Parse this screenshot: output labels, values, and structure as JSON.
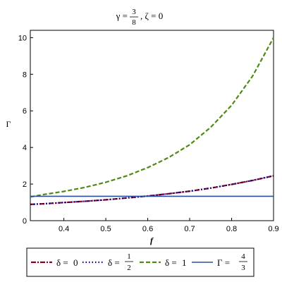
{
  "chart_data": {
    "type": "line",
    "title": {
      "lhs": "γ =",
      "num": "3",
      "den": "8",
      "rest": ", ζ = 0"
    },
    "xlabel": "f",
    "ylabel": "Γ",
    "xlim": [
      0.32,
      0.9
    ],
    "ylim": [
      0,
      10.4
    ],
    "xticks": [
      0.4,
      0.5,
      0.6,
      0.7,
      0.8,
      0.9
    ],
    "xtick_labels": [
      "0.4",
      "0.5",
      "0.6",
      "0.7",
      "0.8",
      "0.9"
    ],
    "yticks": [
      0,
      2,
      4,
      6,
      8,
      10
    ],
    "ytick_labels": [
      "0",
      "2",
      "4",
      "6",
      "8",
      "10"
    ],
    "grid": false,
    "legend_position": "bottom",
    "series": [
      {
        "legend_lhs": "δ = ",
        "legend_value": "0",
        "color": "#8b0021",
        "dash": "dashdot",
        "x": [
          0.32,
          0.35,
          0.4,
          0.45,
          0.5,
          0.55,
          0.6,
          0.65,
          0.7,
          0.75,
          0.8,
          0.85,
          0.9
        ],
        "y": [
          0.89,
          0.92,
          0.99,
          1.06,
          1.14,
          1.24,
          1.35,
          1.47,
          1.61,
          1.78,
          1.98,
          2.2,
          2.45
        ]
      },
      {
        "legend_lhs": "δ = ",
        "legend_num": "1",
        "legend_den": "2",
        "color": "#00008b",
        "dash": "dotted",
        "x": [
          0.32,
          0.35,
          0.4,
          0.45,
          0.5,
          0.55,
          0.6,
          0.65,
          0.7,
          0.75,
          0.8,
          0.85,
          0.9
        ],
        "y": [
          0.89,
          0.92,
          0.99,
          1.06,
          1.14,
          1.24,
          1.35,
          1.47,
          1.61,
          1.78,
          1.98,
          2.2,
          2.45
        ]
      },
      {
        "legend_lhs": "δ = ",
        "legend_value": "1",
        "color": "#4e8a12",
        "dash": "dashed",
        "x": [
          0.32,
          0.35,
          0.4,
          0.45,
          0.5,
          0.55,
          0.6,
          0.65,
          0.7,
          0.75,
          0.8,
          0.85,
          0.9
        ],
        "y": [
          1.3,
          1.42,
          1.6,
          1.82,
          2.1,
          2.45,
          2.9,
          3.45,
          4.15,
          5.1,
          6.3,
          7.9,
          10.0
        ]
      },
      {
        "legend_lhs": "Γ = ",
        "legend_num": "4",
        "legend_den": "3",
        "color": "#2c4e9a",
        "dash": "solid",
        "x": [
          0.32,
          0.9
        ],
        "y": [
          1.333,
          1.333
        ]
      }
    ]
  }
}
